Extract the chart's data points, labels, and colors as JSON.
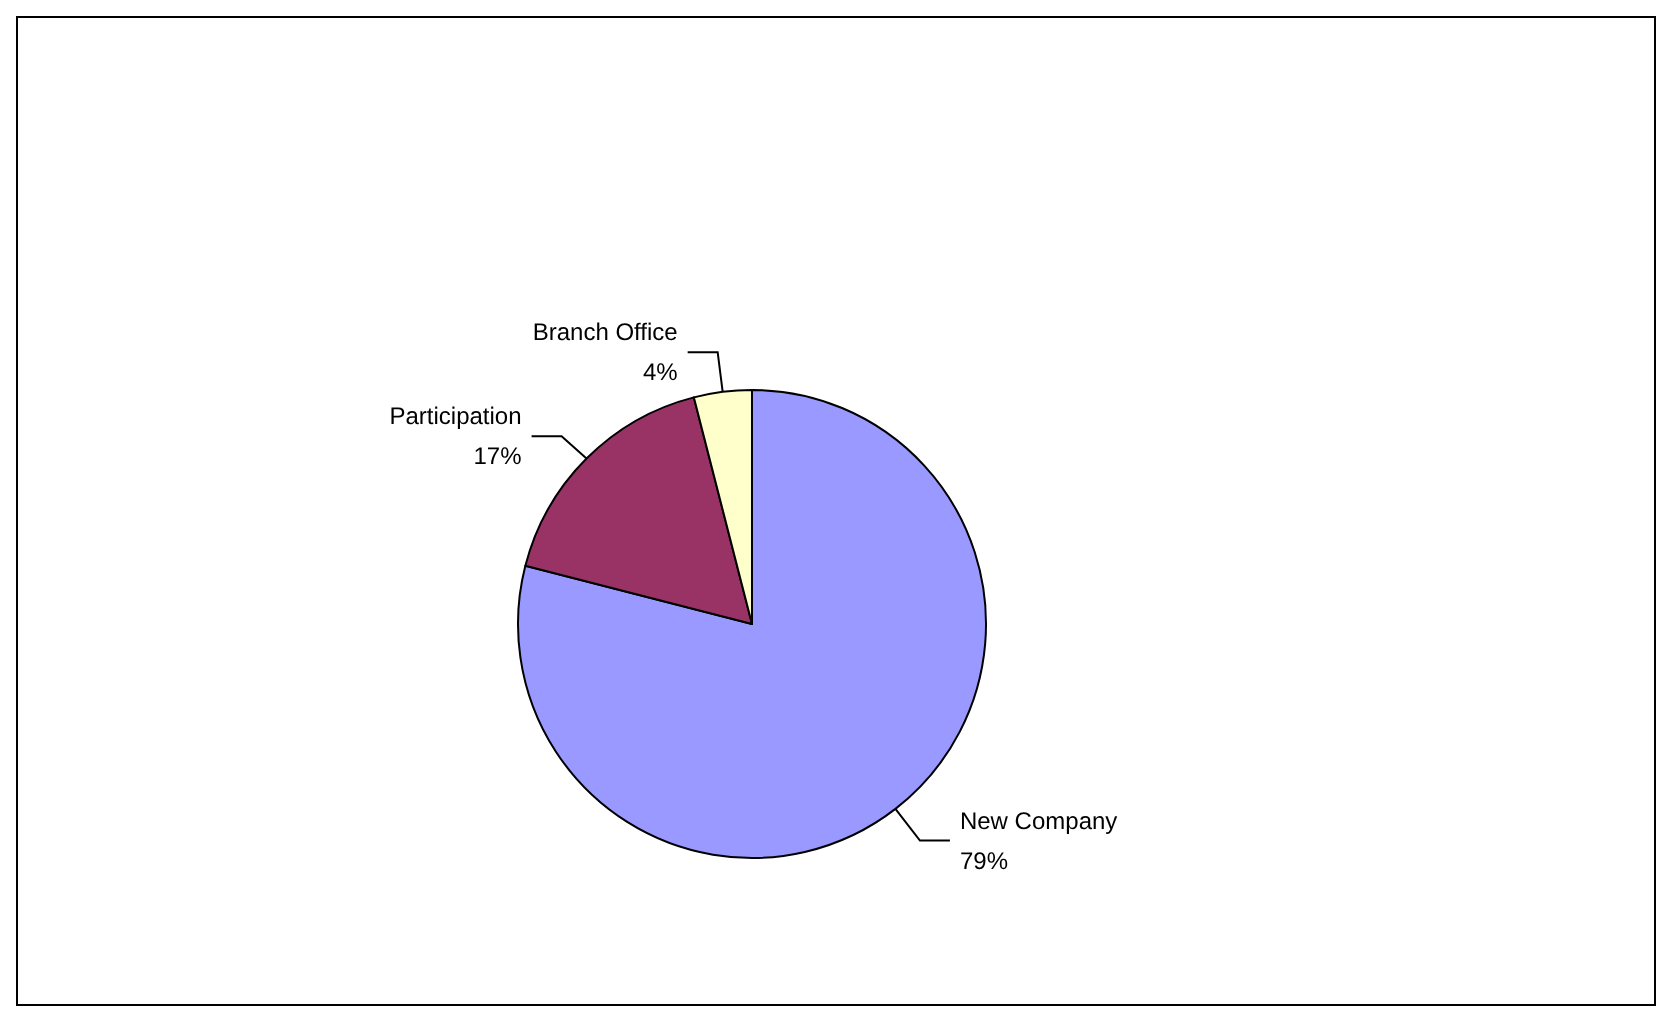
{
  "chart_data": {
    "type": "pie",
    "categories": [
      "New Company",
      "Participation",
      "Branch Office"
    ],
    "values": [
      79,
      17,
      4
    ],
    "colors": [
      "#9999ff",
      "#993366",
      "#ffffcc"
    ],
    "value_labels": [
      "79%",
      "17%",
      "4%"
    ],
    "legend": false
  }
}
